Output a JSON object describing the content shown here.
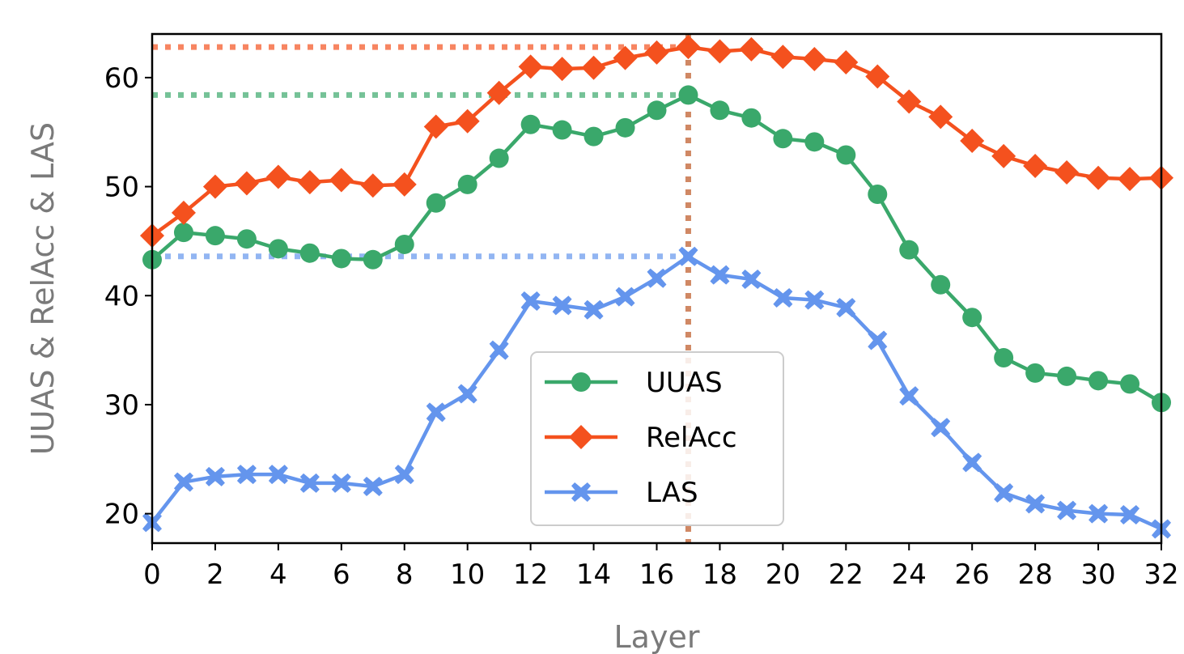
{
  "chart_data": {
    "type": "line",
    "xlabel": "Layer",
    "ylabel": "UUAS & RelAcc & LAS",
    "xlim": [
      0,
      32
    ],
    "ylim": [
      17.3,
      64
    ],
    "xticks": [
      0,
      2,
      4,
      6,
      8,
      10,
      12,
      14,
      16,
      18,
      20,
      22,
      24,
      26,
      28,
      30,
      32
    ],
    "yticks": [
      20,
      30,
      40,
      50,
      60
    ],
    "grid": false,
    "legend_position": "center-bottom",
    "x": [
      0,
      1,
      2,
      3,
      4,
      5,
      6,
      7,
      8,
      9,
      10,
      11,
      12,
      13,
      14,
      15,
      16,
      17,
      18,
      19,
      20,
      21,
      22,
      23,
      24,
      25,
      26,
      27,
      28,
      29,
      30,
      31,
      32
    ],
    "series": [
      {
        "name": "UUAS",
        "color": "#3aa86b",
        "marker": "circle",
        "values": [
          43.3,
          45.8,
          45.5,
          45.2,
          44.3,
          43.9,
          43.4,
          43.3,
          44.7,
          48.5,
          50.2,
          52.6,
          55.7,
          55.2,
          54.6,
          55.4,
          57.0,
          58.4,
          57.0,
          56.3,
          54.4,
          54.1,
          52.9,
          49.3,
          44.2,
          41.0,
          38.0,
          34.3,
          32.9,
          32.6,
          32.2,
          31.9,
          30.2
        ]
      },
      {
        "name": "RelAcc",
        "color": "#f4511e",
        "marker": "diamond",
        "values": [
          45.5,
          47.6,
          50.0,
          50.3,
          50.9,
          50.4,
          50.6,
          50.1,
          50.2,
          55.5,
          56.0,
          58.6,
          61.0,
          60.8,
          60.9,
          61.8,
          62.3,
          62.8,
          62.4,
          62.6,
          61.9,
          61.7,
          61.4,
          60.1,
          57.8,
          56.4,
          54.2,
          52.8,
          51.9,
          51.3,
          50.8,
          50.7,
          50.8
        ]
      },
      {
        "name": "LAS",
        "color": "#6495ed",
        "marker": "x",
        "values": [
          19.2,
          22.9,
          23.4,
          23.6,
          23.6,
          22.8,
          22.8,
          22.5,
          23.6,
          29.3,
          31.0,
          35.0,
          39.5,
          39.1,
          38.7,
          39.9,
          41.6,
          43.6,
          41.9,
          41.5,
          39.8,
          39.6,
          38.9,
          35.9,
          30.8,
          27.9,
          24.7,
          21.9,
          20.9,
          20.3,
          20.0,
          19.9,
          18.6
        ]
      }
    ],
    "reference_lines": [
      {
        "type": "horizontal",
        "y": 62.8,
        "color": "#f4511e",
        "style": "dotted"
      },
      {
        "type": "horizontal",
        "y": 58.4,
        "color": "#3aa86b",
        "style": "dotted"
      },
      {
        "type": "horizontal",
        "y": 43.6,
        "color": "#6495ed",
        "style": "dotted"
      },
      {
        "type": "vertical",
        "x": 17,
        "color": "#c06030",
        "style": "dotted"
      }
    ]
  }
}
